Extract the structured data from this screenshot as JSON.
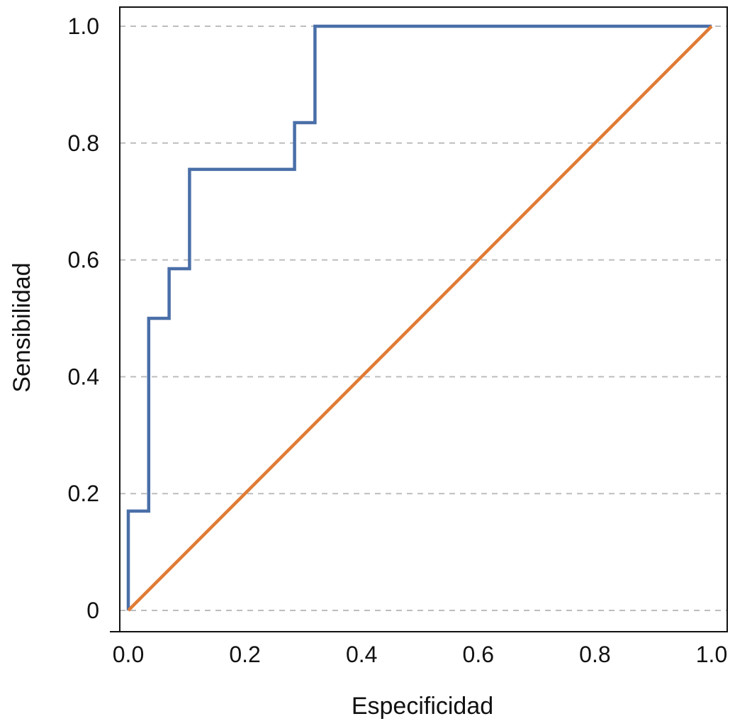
{
  "chart_data": {
    "type": "line",
    "title": "",
    "xlabel": "Especificidad",
    "ylabel": "Sensibilidad",
    "xlim": [
      0,
      1
    ],
    "ylim": [
      0,
      1
    ],
    "x_ticks": [
      "0.0",
      "0.2",
      "0.4",
      "0.6",
      "0.8",
      "1.0"
    ],
    "y_ticks": [
      "0",
      "0.2",
      "0.4",
      "0.6",
      "0.8",
      "1.0"
    ],
    "grid": "horizontal dashed",
    "legend": "none",
    "series": [
      {
        "color": "#4a6fa8",
        "style": "step",
        "x": [
          0.0,
          0.0,
          0.035,
          0.035,
          0.07,
          0.07,
          0.105,
          0.105,
          0.285,
          0.285,
          0.32,
          0.32,
          1.0
        ],
        "y": [
          0.0,
          0.17,
          0.17,
          0.5,
          0.5,
          0.585,
          0.585,
          0.755,
          0.755,
          0.835,
          0.835,
          1.0,
          1.0
        ]
      },
      {
        "color": "#e07b35",
        "style": "line",
        "x": [
          0.0,
          1.0
        ],
        "y": [
          0.0,
          1.0
        ]
      }
    ]
  }
}
